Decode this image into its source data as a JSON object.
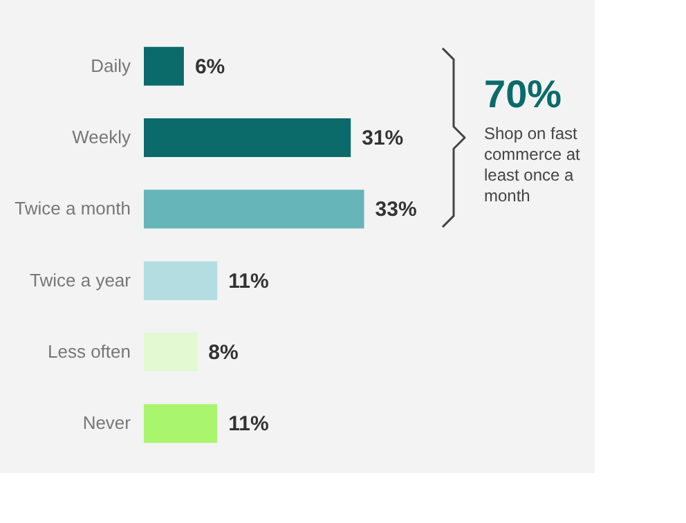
{
  "chart_data": {
    "type": "bar",
    "orientation": "horizontal",
    "categories": [
      "Daily",
      "Weekly",
      "Twice a month",
      "Twice a year",
      "Less often",
      "Never"
    ],
    "values": [
      6,
      31,
      33,
      11,
      8,
      11
    ],
    "value_labels": [
      "6%",
      "31%",
      "33%",
      "11%",
      "8%",
      "11%"
    ],
    "colors": [
      "#0b6b6b",
      "#0b6b6b",
      "#66b5b8",
      "#b3dde0",
      "#e2f9d2",
      "#aaf56e"
    ],
    "annotations": [
      "70%",
      "Shop on fast commerce at least once a month"
    ],
    "legend": false
  }
}
